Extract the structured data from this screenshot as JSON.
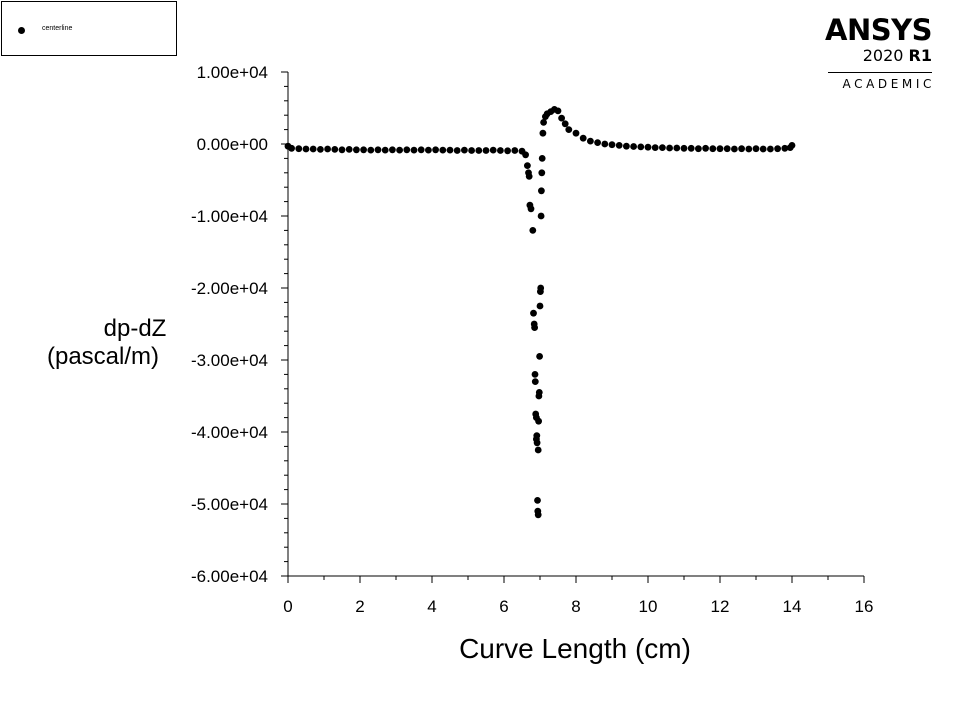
{
  "legend": {
    "entries": [
      {
        "label": "centerline",
        "marker": "filled-circle",
        "color": "#000000"
      }
    ]
  },
  "brand": {
    "name": "ANSYS",
    "version": "2020",
    "release": "R1",
    "edition": "ACADEMIC"
  },
  "chart_data": {
    "type": "scatter",
    "title": "",
    "xlabel": "Curve Length (cm)",
    "ylabel_line1": "dp-dZ",
    "ylabel_line2": "(pascal/m)",
    "xlim": [
      0,
      16
    ],
    "ylim": [
      -60000,
      10000
    ],
    "x_ticks": [
      0,
      2,
      4,
      6,
      8,
      10,
      12,
      14,
      16
    ],
    "x_tick_labels": [
      "0",
      "2",
      "4",
      "6",
      "8",
      "10",
      "12",
      "14",
      "16"
    ],
    "y_ticks": [
      10000,
      0,
      -10000,
      -20000,
      -30000,
      -40000,
      -50000,
      -60000
    ],
    "y_tick_labels": [
      "1.00e+04",
      "0.00e+00",
      "-1.00e+04",
      "-2.00e+04",
      "-3.00e+04",
      "-4.00e+04",
      "-5.00e+04",
      "-6.00e+04"
    ],
    "grid": false,
    "legend_position": "top-left",
    "series": [
      {
        "name": "centerline",
        "color": "#000000",
        "x": [
          0,
          0.1,
          0.3,
          0.5,
          0.7,
          0.9,
          1.1,
          1.3,
          1.5,
          1.7,
          1.9,
          2.1,
          2.3,
          2.5,
          2.7,
          2.9,
          3.1,
          3.3,
          3.5,
          3.7,
          3.9,
          4.1,
          4.3,
          4.5,
          4.7,
          4.9,
          5.1,
          5.3,
          5.5,
          5.7,
          5.9,
          6.1,
          6.3,
          6.5,
          6.6,
          6.65,
          6.68,
          6.7,
          6.72,
          6.75,
          6.8,
          6.82,
          6.84,
          6.85,
          6.86,
          6.87,
          6.88,
          6.9,
          6.9,
          6.91,
          6.92,
          6.93,
          6.94,
          6.95,
          6.95,
          6.96,
          6.97,
          6.98,
          6.99,
          7.0,
          7.01,
          7.02,
          7.03,
          7.04,
          7.05,
          7.06,
          7.08,
          7.1,
          7.15,
          7.2,
          7.3,
          7.4,
          7.5,
          7.6,
          7.7,
          7.8,
          8.0,
          8.2,
          8.4,
          8.6,
          8.8,
          9.0,
          9.2,
          9.4,
          9.6,
          9.8,
          10.0,
          10.2,
          10.4,
          10.6,
          10.8,
          11.0,
          11.2,
          11.4,
          11.6,
          11.8,
          12.0,
          12.2,
          12.4,
          12.6,
          12.8,
          13.0,
          13.2,
          13.4,
          13.6,
          13.8,
          13.95,
          14.0
        ],
        "y": [
          -300,
          -600,
          -650,
          -700,
          -700,
          -750,
          -700,
          -750,
          -800,
          -750,
          -800,
          -800,
          -850,
          -800,
          -850,
          -800,
          -850,
          -800,
          -850,
          -800,
          -850,
          -800,
          -850,
          -850,
          -900,
          -850,
          -900,
          -900,
          -900,
          -850,
          -900,
          -950,
          -900,
          -1000,
          -1500,
          -3000,
          -4000,
          -4500,
          -8500,
          -9000,
          -12000,
          -23500,
          -25000,
          -25500,
          -32000,
          -33000,
          -37500,
          -38000,
          -41000,
          -40500,
          -41500,
          -49500,
          -51000,
          -51500,
          -42500,
          -38500,
          -35000,
          -34500,
          -29500,
          -22500,
          -20500,
          -20000,
          -10000,
          -6500,
          -4000,
          -2000,
          1500,
          3000,
          3800,
          4200,
          4500,
          4800,
          4600,
          3600,
          2800,
          2000,
          1500,
          800,
          400,
          200,
          0,
          -100,
          -200,
          -300,
          -350,
          -400,
          -450,
          -500,
          -500,
          -550,
          -550,
          -600,
          -600,
          -650,
          -600,
          -650,
          -650,
          -650,
          -700,
          -650,
          -700,
          -650,
          -700,
          -700,
          -650,
          -600,
          -500,
          -200
        ]
      }
    ]
  }
}
